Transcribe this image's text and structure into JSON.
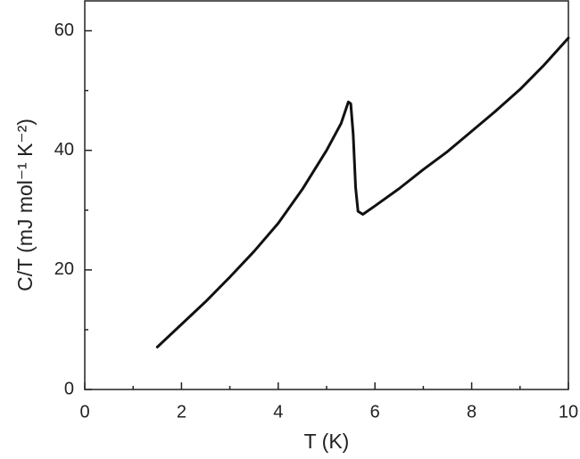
{
  "chart_data": {
    "type": "line",
    "xlabel": "T (K)",
    "ylabel": "C/T (mJ mol⁻¹ K⁻²)",
    "x": [
      1.5,
      2,
      2.5,
      3,
      3.5,
      4,
      4.5,
      5,
      5.3,
      5.45,
      5.5,
      5.55,
      5.6,
      5.65,
      5.75,
      6,
      6.5,
      7,
      7.5,
      8,
      8.5,
      9,
      9.5,
      10
    ],
    "series": [
      {
        "color": "#111111",
        "values": [
          7.1,
          10.9,
          14.7,
          18.8,
          23.1,
          27.8,
          33.5,
          40.0,
          44.5,
          48.1,
          47.8,
          42.7,
          33.8,
          29.8,
          29.3,
          30.7,
          33.6,
          36.8,
          39.8,
          43.2,
          46.6,
          50.2,
          54.3,
          58.8
        ]
      }
    ],
    "xlim": [
      0,
      10
    ],
    "ylim": [
      0,
      65
    ],
    "xticks": [
      0,
      2,
      4,
      6,
      8,
      10
    ],
    "yticks": [
      0,
      20,
      40,
      60
    ],
    "xminorticks": [
      1,
      3,
      5,
      7,
      9
    ],
    "yminorticks": [
      10,
      30,
      50
    ]
  }
}
